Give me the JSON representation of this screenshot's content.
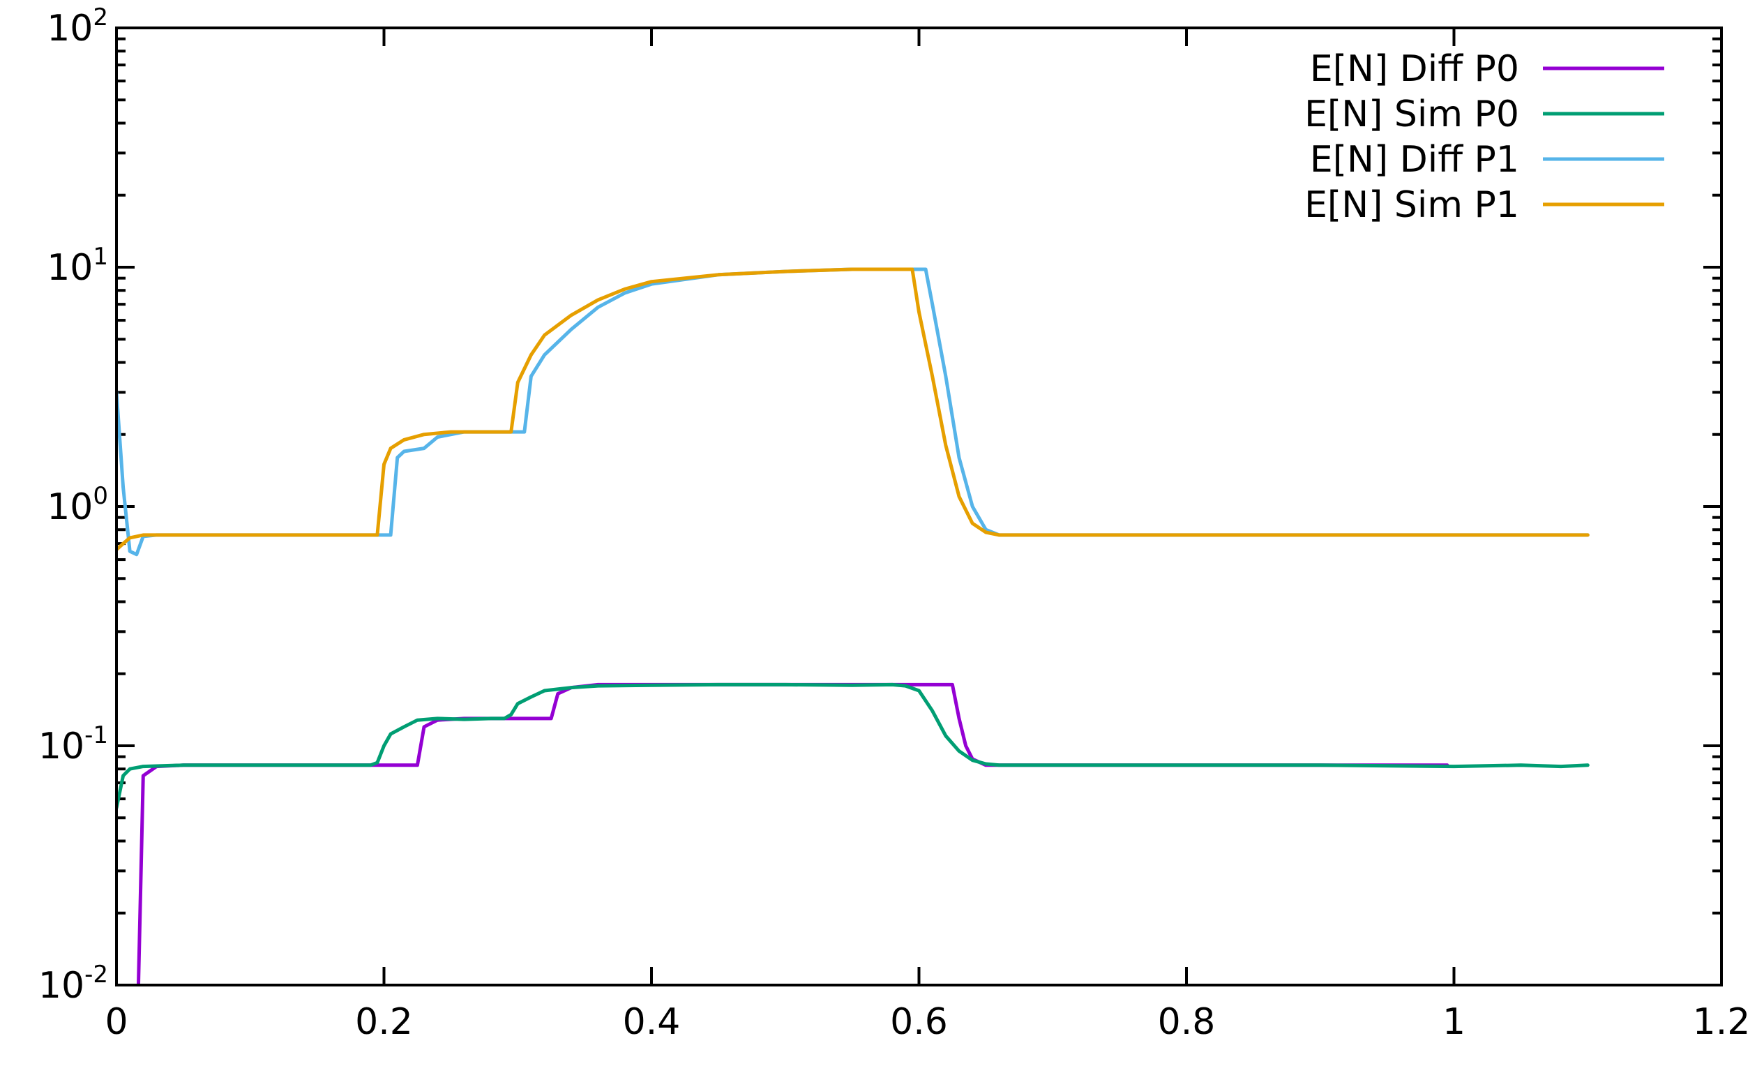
{
  "chart_data": {
    "type": "line",
    "title": "",
    "xlabel": "",
    "ylabel": "",
    "xlim": [
      0,
      1.2
    ],
    "ylim": [
      0.01,
      100
    ],
    "yscale": "log",
    "grid": false,
    "legend_position": "top-right",
    "x_ticks": [
      {
        "value": 0,
        "label": "0"
      },
      {
        "value": 0.2,
        "label": "0.2"
      },
      {
        "value": 0.4,
        "label": "0.4"
      },
      {
        "value": 0.6,
        "label": "0.6"
      },
      {
        "value": 0.8,
        "label": "0.8"
      },
      {
        "value": 1,
        "label": "1"
      },
      {
        "value": 1.2,
        "label": "1.2"
      }
    ],
    "y_ticks": [
      {
        "value": 0.01,
        "base": "10",
        "exp": "-2"
      },
      {
        "value": 0.1,
        "base": "10",
        "exp": "-1"
      },
      {
        "value": 1,
        "base": "10",
        "exp": "0"
      },
      {
        "value": 10,
        "base": "10",
        "exp": "1"
      },
      {
        "value": 100,
        "base": "10",
        "exp": "2"
      }
    ],
    "series": [
      {
        "name": "E[N] Diff P0",
        "color": "#9400d3",
        "points": [
          [
            0.016,
            0.008
          ],
          [
            0.02,
            0.075
          ],
          [
            0.03,
            0.082
          ],
          [
            0.05,
            0.083
          ],
          [
            0.1,
            0.083
          ],
          [
            0.15,
            0.083
          ],
          [
            0.2,
            0.083
          ],
          [
            0.22,
            0.083
          ],
          [
            0.225,
            0.083
          ],
          [
            0.23,
            0.12
          ],
          [
            0.24,
            0.128
          ],
          [
            0.26,
            0.13
          ],
          [
            0.3,
            0.13
          ],
          [
            0.32,
            0.13
          ],
          [
            0.325,
            0.13
          ],
          [
            0.33,
            0.165
          ],
          [
            0.34,
            0.175
          ],
          [
            0.36,
            0.18
          ],
          [
            0.4,
            0.18
          ],
          [
            0.5,
            0.18
          ],
          [
            0.6,
            0.18
          ],
          [
            0.62,
            0.18
          ],
          [
            0.625,
            0.18
          ],
          [
            0.63,
            0.13
          ],
          [
            0.635,
            0.1
          ],
          [
            0.64,
            0.088
          ],
          [
            0.65,
            0.083
          ],
          [
            0.7,
            0.083
          ],
          [
            0.8,
            0.083
          ],
          [
            0.9,
            0.083
          ],
          [
            0.995,
            0.083
          ]
        ]
      },
      {
        "name": "E[N] Sim P0",
        "color": "#009e73",
        "points": [
          [
            0.0,
            0.055
          ],
          [
            0.005,
            0.075
          ],
          [
            0.01,
            0.08
          ],
          [
            0.02,
            0.082
          ],
          [
            0.05,
            0.083
          ],
          [
            0.1,
            0.083
          ],
          [
            0.15,
            0.083
          ],
          [
            0.19,
            0.083
          ],
          [
            0.195,
            0.085
          ],
          [
            0.2,
            0.1
          ],
          [
            0.205,
            0.112
          ],
          [
            0.215,
            0.12
          ],
          [
            0.225,
            0.128
          ],
          [
            0.24,
            0.13
          ],
          [
            0.26,
            0.129
          ],
          [
            0.28,
            0.13
          ],
          [
            0.29,
            0.13
          ],
          [
            0.295,
            0.135
          ],
          [
            0.3,
            0.15
          ],
          [
            0.31,
            0.16
          ],
          [
            0.32,
            0.17
          ],
          [
            0.34,
            0.175
          ],
          [
            0.36,
            0.178
          ],
          [
            0.4,
            0.179
          ],
          [
            0.45,
            0.18
          ],
          [
            0.5,
            0.18
          ],
          [
            0.55,
            0.179
          ],
          [
            0.58,
            0.18
          ],
          [
            0.59,
            0.178
          ],
          [
            0.6,
            0.17
          ],
          [
            0.61,
            0.14
          ],
          [
            0.62,
            0.11
          ],
          [
            0.63,
            0.095
          ],
          [
            0.64,
            0.087
          ],
          [
            0.65,
            0.084
          ],
          [
            0.66,
            0.083
          ],
          [
            0.7,
            0.083
          ],
          [
            0.8,
            0.083
          ],
          [
            0.9,
            0.083
          ],
          [
            1.0,
            0.082
          ],
          [
            1.05,
            0.083
          ],
          [
            1.08,
            0.082
          ],
          [
            1.1,
            0.083
          ]
        ]
      },
      {
        "name": "E[N] Diff P1",
        "color": "#56b4e9",
        "points": [
          [
            0.0,
            3.0
          ],
          [
            0.005,
            1.2
          ],
          [
            0.01,
            0.65
          ],
          [
            0.015,
            0.63
          ],
          [
            0.02,
            0.75
          ],
          [
            0.03,
            0.76
          ],
          [
            0.1,
            0.76
          ],
          [
            0.2,
            0.76
          ],
          [
            0.2,
            0.76
          ],
          [
            0.205,
            0.76
          ],
          [
            0.21,
            1.6
          ],
          [
            0.215,
            1.7
          ],
          [
            0.23,
            1.75
          ],
          [
            0.24,
            1.95
          ],
          [
            0.26,
            2.05
          ],
          [
            0.3,
            2.05
          ],
          [
            0.3,
            2.05
          ],
          [
            0.305,
            2.05
          ],
          [
            0.31,
            3.5
          ],
          [
            0.32,
            4.3
          ],
          [
            0.34,
            5.5
          ],
          [
            0.36,
            6.8
          ],
          [
            0.38,
            7.8
          ],
          [
            0.4,
            8.5
          ],
          [
            0.45,
            9.3
          ],
          [
            0.5,
            9.6
          ],
          [
            0.55,
            9.8
          ],
          [
            0.6,
            9.8
          ],
          [
            0.6,
            9.8
          ],
          [
            0.605,
            9.8
          ],
          [
            0.61,
            7.0
          ],
          [
            0.62,
            3.5
          ],
          [
            0.63,
            1.6
          ],
          [
            0.64,
            1.0
          ],
          [
            0.65,
            0.8
          ],
          [
            0.66,
            0.76
          ],
          [
            0.7,
            0.76
          ],
          [
            0.8,
            0.76
          ],
          [
            0.9,
            0.76
          ],
          [
            1.0,
            0.76
          ],
          [
            1.1,
            0.76
          ]
        ]
      },
      {
        "name": "E[N] Sim P1",
        "color": "#e69f00",
        "points": [
          [
            0.0,
            0.66
          ],
          [
            0.005,
            0.7
          ],
          [
            0.01,
            0.74
          ],
          [
            0.02,
            0.76
          ],
          [
            0.05,
            0.76
          ],
          [
            0.1,
            0.76
          ],
          [
            0.15,
            0.76
          ],
          [
            0.19,
            0.76
          ],
          [
            0.195,
            0.76
          ],
          [
            0.2,
            1.5
          ],
          [
            0.205,
            1.75
          ],
          [
            0.215,
            1.9
          ],
          [
            0.23,
            2.0
          ],
          [
            0.25,
            2.05
          ],
          [
            0.29,
            2.05
          ],
          [
            0.295,
            2.05
          ],
          [
            0.3,
            3.3
          ],
          [
            0.31,
            4.3
          ],
          [
            0.32,
            5.2
          ],
          [
            0.34,
            6.3
          ],
          [
            0.36,
            7.3
          ],
          [
            0.38,
            8.1
          ],
          [
            0.4,
            8.7
          ],
          [
            0.45,
            9.3
          ],
          [
            0.5,
            9.6
          ],
          [
            0.55,
            9.8
          ],
          [
            0.595,
            9.8
          ],
          [
            0.6,
            6.5
          ],
          [
            0.61,
            3.5
          ],
          [
            0.62,
            1.8
          ],
          [
            0.63,
            1.1
          ],
          [
            0.64,
            0.85
          ],
          [
            0.65,
            0.78
          ],
          [
            0.66,
            0.76
          ],
          [
            0.7,
            0.76
          ],
          [
            0.8,
            0.76
          ],
          [
            0.9,
            0.76
          ],
          [
            1.0,
            0.76
          ],
          [
            1.1,
            0.76
          ]
        ]
      }
    ]
  }
}
